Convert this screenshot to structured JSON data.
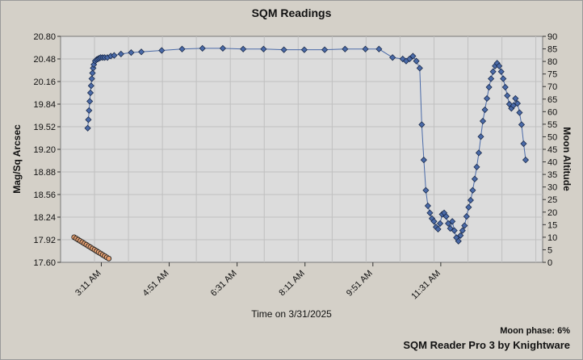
{
  "title": "SQM Readings",
  "xlabel": "Time on 3/31/2025",
  "ylabel_left": "Mag/Sq Arcsec",
  "ylabel_right": "Moon Altitude",
  "moon_phase": "Moon phase: 6%",
  "credit": "SQM Reader Pro 3 by Knightware",
  "colors": {
    "plot_bg": "#dcdcdc",
    "sqm_marker": "#4a6aa8",
    "moon_marker": "#e8a070",
    "grid": "#c0c0c0"
  },
  "chart_data": {
    "type": "scatter",
    "x_ticks": [
      "3:11 AM",
      "4:51 AM",
      "6:31 AM",
      "8:11 AM",
      "9:51 AM",
      "11:31 AM"
    ],
    "y_left_ticks": [
      "20.80",
      "20.48",
      "20.16",
      "19.84",
      "19.52",
      "19.20",
      "18.88",
      "18.56",
      "18.24",
      "17.92",
      "17.60"
    ],
    "y_right_ticks": [
      "90",
      "85",
      "80",
      "75",
      "70",
      "65",
      "60",
      "55",
      "50",
      "45",
      "40",
      "35",
      "30",
      "25",
      "20",
      "15",
      "10",
      "5",
      "0"
    ],
    "ylim_left": [
      17.6,
      20.8
    ],
    "ylim_right": [
      0,
      90
    ],
    "x_range_minutes": [
      131,
      841
    ],
    "grid": true,
    "series": [
      {
        "axis": "left",
        "x": [
          171,
          172,
          173,
          174,
          175,
          176,
          177,
          178,
          179,
          180,
          182,
          184,
          186,
          188,
          190,
          193,
          196,
          200,
          205,
          210,
          220,
          235,
          250,
          280,
          310,
          340,
          370,
          400,
          430,
          460,
          490,
          520,
          550,
          580,
          600,
          620,
          635,
          640,
          645,
          650,
          655,
          660,
          663,
          666,
          669,
          672,
          675,
          678,
          681,
          684,
          687,
          690,
          693,
          696,
          699,
          702,
          705,
          708,
          711,
          714,
          717,
          720,
          723,
          726,
          729,
          732,
          735,
          738,
          741,
          744,
          747,
          750,
          753,
          756,
          759,
          762,
          765,
          768,
          771,
          774,
          777,
          780,
          783,
          786,
          789,
          792,
          795,
          798,
          801,
          804,
          807,
          810,
          813,
          816
        ],
        "y": [
          19.5,
          19.62,
          19.75,
          19.88,
          20.0,
          20.1,
          20.2,
          20.28,
          20.35,
          20.4,
          20.45,
          20.47,
          20.48,
          20.49,
          20.5,
          20.5,
          20.5,
          20.5,
          20.52,
          20.53,
          20.55,
          20.57,
          20.58,
          20.6,
          20.62,
          20.63,
          20.63,
          20.62,
          20.62,
          20.61,
          20.61,
          20.61,
          20.62,
          20.62,
          20.62,
          20.5,
          20.48,
          20.45,
          20.48,
          20.52,
          20.45,
          20.35,
          19.55,
          19.05,
          18.62,
          18.4,
          18.3,
          18.22,
          18.18,
          18.1,
          18.07,
          18.15,
          18.28,
          18.3,
          18.25,
          18.15,
          18.08,
          18.18,
          18.05,
          17.95,
          17.9,
          17.98,
          18.05,
          18.12,
          18.25,
          18.38,
          18.48,
          18.62,
          18.78,
          18.95,
          19.15,
          19.38,
          19.6,
          19.76,
          19.92,
          20.08,
          20.2,
          20.3,
          20.38,
          20.42,
          20.38,
          20.3,
          20.2,
          20.08,
          19.96,
          19.84,
          19.78,
          19.82,
          19.92,
          19.85,
          19.72,
          19.55,
          19.28,
          19.05
        ]
      },
      {
        "axis": "right",
        "x": [
          151,
          154,
          157,
          160,
          163,
          166,
          169,
          172,
          175,
          178,
          181,
          184,
          187,
          190,
          193,
          196,
          199,
          202
        ],
        "y": [
          10,
          9.5,
          9,
          8.5,
          8,
          7.5,
          7,
          6.5,
          6,
          5.5,
          5,
          4.5,
          4,
          3.5,
          3,
          2.5,
          2,
          1.5
        ]
      }
    ]
  }
}
